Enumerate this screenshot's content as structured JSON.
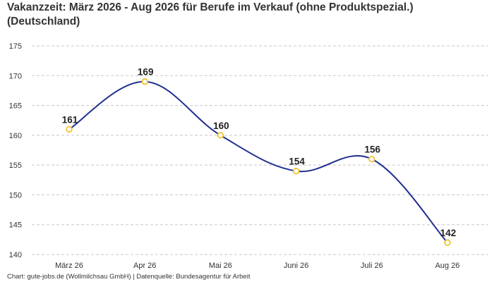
{
  "header": {
    "title_line1": "Vakanzzeit: März 2026 - Aug 2026 für Berufe im Verkauf (ohne Produktspezial.)",
    "title_line2": "(Deutschland)"
  },
  "footer": {
    "source": "Chart: gute-jobs.de (Wollmilchsau GmbH) | Datenquelle: Bundesagentur für Arbeit"
  },
  "chart_data": {
    "type": "line",
    "title": "Vakanzzeit: März 2026 - Aug 2026 für Berufe im Verkauf (ohne Produktspezial.) (Deutschland)",
    "categories": [
      "März 26",
      "Apr 26",
      "Mai 26",
      "Juni 26",
      "Juli 26",
      "Aug 26"
    ],
    "values": [
      161,
      169,
      160,
      154,
      156,
      142
    ],
    "y_ticks": [
      140,
      145,
      150,
      155,
      160,
      165,
      170,
      175
    ],
    "ylim": [
      140,
      175
    ],
    "grid": true,
    "line_color": "#1f2f8f",
    "marker_color": "#f2c230"
  }
}
